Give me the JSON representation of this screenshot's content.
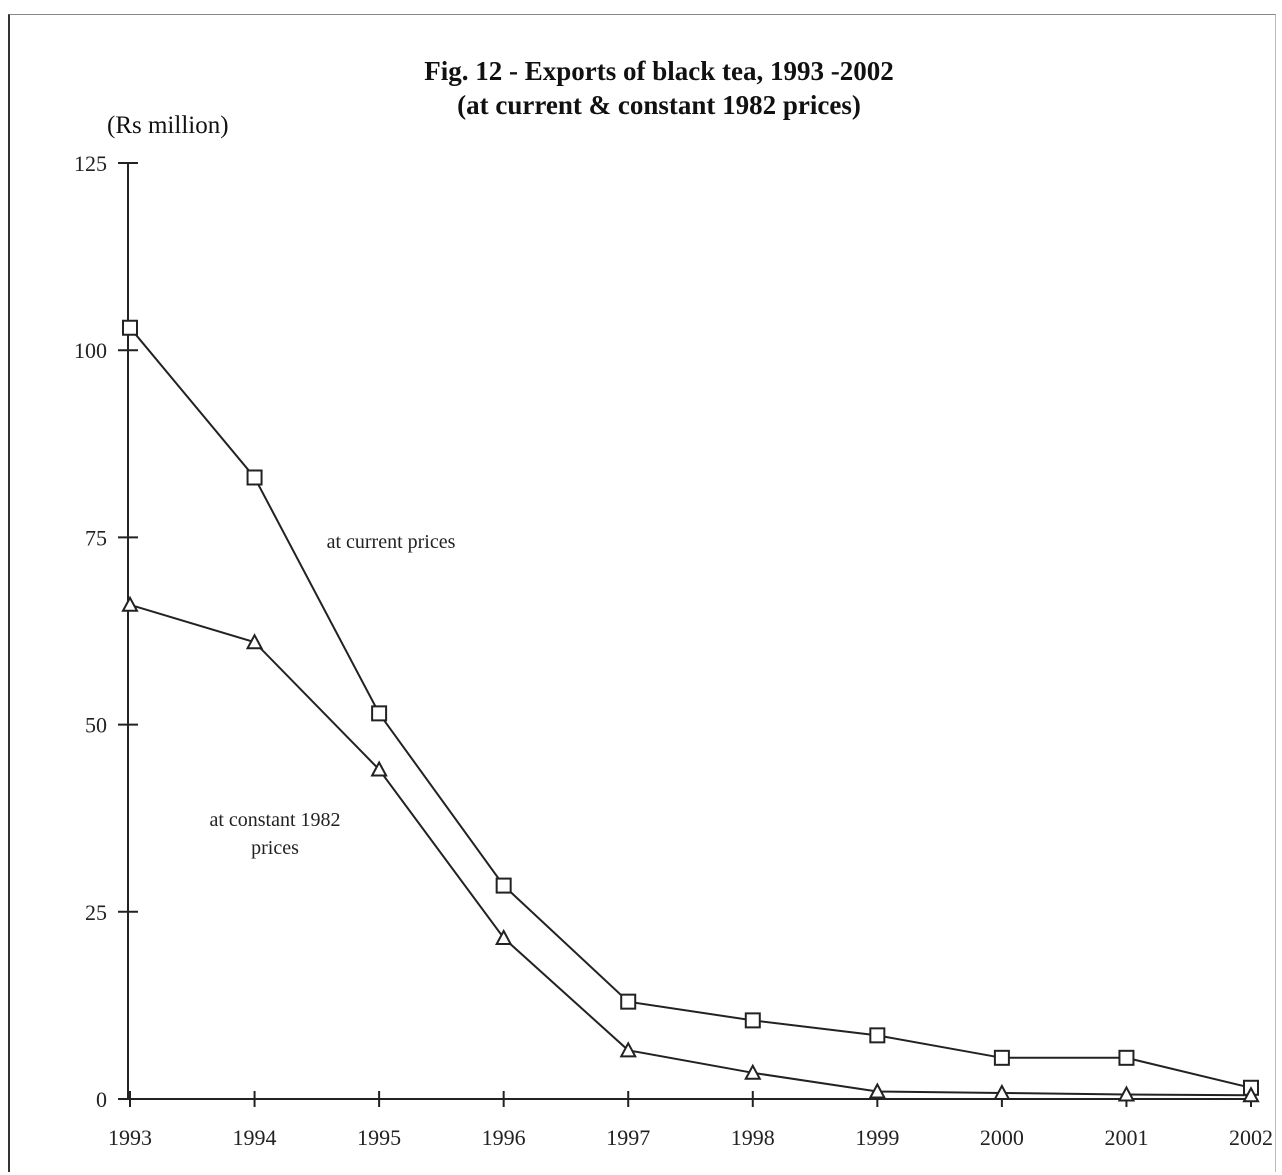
{
  "chart_data": {
    "type": "line",
    "title": "Fig. 12 - Exports of black tea, 1993 -2002",
    "subtitle": "(at current & constant 1982 prices)",
    "ylabel": "(Rs million)",
    "xlabel": "",
    "x": [
      "1993",
      "1994",
      "1995",
      "1996",
      "1997",
      "1998",
      "1999",
      "2000",
      "2001",
      "2002"
    ],
    "ylim": [
      0,
      125
    ],
    "yticks": [
      "0",
      "25",
      "50",
      "75",
      "100",
      "125"
    ],
    "grid": false,
    "series": [
      {
        "name": "at current prices",
        "marker": "square",
        "values": [
          103,
          83,
          51.5,
          28.5,
          13,
          10.5,
          8.5,
          5.5,
          5.5,
          1.5
        ]
      },
      {
        "name": "at constant 1982 prices",
        "marker": "triangle",
        "values": [
          66,
          61,
          44,
          21.5,
          6.5,
          3.5,
          1,
          0.8,
          0.6,
          0.5
        ]
      }
    ],
    "annotations": [
      {
        "text": "at current prices"
      },
      {
        "text": "at constant 1982",
        "text2": "prices"
      }
    ]
  }
}
